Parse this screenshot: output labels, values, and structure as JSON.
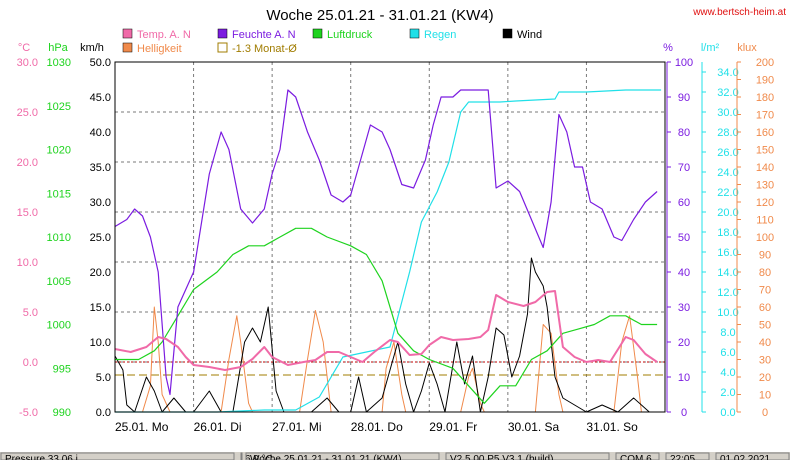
{
  "title": "Woche 25.01.21 - 31.01.21 (KW4)",
  "website": "www.bertsch-heim.at",
  "colors": {
    "temp": "#f06aa8",
    "humidity": "#7b1ce0",
    "pressure": "#1ed31e",
    "rain": "#20e0e8",
    "wind": "#000000",
    "brightness": "#f08a4b",
    "monthly_avg": "#a07c00",
    "grid": "#7a7a7a",
    "status_bar": "#d4d0c8"
  },
  "legend": [
    {
      "label": "Temp. A. N",
      "series": "temp"
    },
    {
      "label": "Feuchte A. N",
      "series": "humidity"
    },
    {
      "label": "Luftdruck",
      "series": "pressure"
    },
    {
      "label": "Regen",
      "series": "rain"
    },
    {
      "label": "Wind",
      "series": "wind"
    },
    {
      "label": "Helligkeit",
      "series": "brightness"
    },
    {
      "label": "-1.3 Monat-Ø",
      "series": "monthly_avg"
    }
  ],
  "status_bar": {
    "items": [
      "Pressure 33.06 i",
      "6.9 °C",
      "Woche 25.01.21 - 31.01.21 (KW4)",
      "V2.5.00 P5 V3.1 (build)",
      "COM 6",
      "22:05",
      "01.02.2021"
    ]
  },
  "chart_data": {
    "type": "line",
    "x_categories": [
      "25.01. Mo",
      "26.01. Di",
      "27.01. Mi",
      "28.01. Do",
      "29.01. Fr",
      "30.01. Sa",
      "31.01. So"
    ],
    "x_range_days": [
      0,
      7
    ],
    "axes": {
      "temp": {
        "unit": "°C",
        "range": [
          -5,
          30
        ],
        "ticks": [
          "-5.0",
          "0.0",
          "5.0",
          "10.0",
          "15.0",
          "20.0",
          "25.0",
          "30.0"
        ],
        "ticks_shown": [
          "-5.0",
          "0.0",
          "5.0",
          "10.0",
          "15.0",
          "20.0",
          "25.0",
          "30.0"
        ]
      },
      "pressure": {
        "unit": "hPa",
        "range": [
          990,
          1030
        ],
        "ticks_shown": [
          "990",
          "995",
          "1000",
          "1005",
          "1010",
          "1015",
          "1020",
          "1025",
          "1030"
        ]
      },
      "wind": {
        "unit": "km/h",
        "range": [
          0,
          50
        ],
        "ticks_shown": [
          "0.0",
          "5.0",
          "10.0",
          "15.0",
          "20.0",
          "25.0",
          "30.0",
          "35.0",
          "40.0",
          "45.0",
          "50.0"
        ]
      },
      "humidity": {
        "unit": "%",
        "range": [
          0,
          100
        ],
        "ticks_shown": [
          "0",
          "10",
          "20",
          "30",
          "40",
          "50",
          "60",
          "70",
          "80",
          "90",
          "100"
        ]
      },
      "rain": {
        "unit": "l/m²",
        "range": [
          0,
          35
        ],
        "ticks_shown": [
          "0.0",
          "2.0",
          "4.0",
          "6.0",
          "8.0",
          "10.0",
          "12.0",
          "14.0",
          "16.0",
          "18.0",
          "20.0",
          "22.0",
          "24.0",
          "26.0",
          "28.0",
          "30.0",
          "32.0",
          "34.0"
        ]
      },
      "brightness": {
        "unit": "klux",
        "range": [
          0,
          200
        ],
        "ticks_shown": [
          "0",
          "10",
          "20",
          "30",
          "40",
          "50",
          "60",
          "70",
          "80",
          "90",
          "100",
          "110",
          "120",
          "130",
          "140",
          "150",
          "160",
          "170",
          "180",
          "190",
          "200"
        ]
      }
    },
    "grid": true,
    "reference_lines": {
      "temp_zero": 0.0,
      "monthly_avg_temp": -1.3
    },
    "series": [
      {
        "name": "Feuchte A. N",
        "axis": "humidity",
        "points": [
          [
            0,
            53
          ],
          [
            0.15,
            55
          ],
          [
            0.25,
            58
          ],
          [
            0.35,
            56
          ],
          [
            0.45,
            50
          ],
          [
            0.55,
            40
          ],
          [
            0.65,
            10
          ],
          [
            0.7,
            5
          ],
          [
            0.8,
            30
          ],
          [
            1.0,
            40
          ],
          [
            1.2,
            68
          ],
          [
            1.35,
            80
          ],
          [
            1.45,
            75
          ],
          [
            1.6,
            58
          ],
          [
            1.75,
            54
          ],
          [
            1.9,
            58
          ],
          [
            2.0,
            68
          ],
          [
            2.1,
            75
          ],
          [
            2.2,
            92
          ],
          [
            2.3,
            90
          ],
          [
            2.45,
            80
          ],
          [
            2.6,
            72
          ],
          [
            2.75,
            62
          ],
          [
            2.9,
            60
          ],
          [
            3.0,
            62
          ],
          [
            3.1,
            70
          ],
          [
            3.25,
            82
          ],
          [
            3.4,
            80
          ],
          [
            3.5,
            75
          ],
          [
            3.65,
            65
          ],
          [
            3.8,
            64
          ],
          [
            3.95,
            72
          ],
          [
            4.05,
            82
          ],
          [
            4.15,
            90
          ],
          [
            4.3,
            90
          ],
          [
            4.4,
            92
          ],
          [
            4.5,
            92
          ],
          [
            4.6,
            92
          ],
          [
            4.75,
            92
          ],
          [
            4.85,
            64
          ],
          [
            5.0,
            66
          ],
          [
            5.15,
            63
          ],
          [
            5.3,
            55
          ],
          [
            5.45,
            47
          ],
          [
            5.55,
            60
          ],
          [
            5.65,
            85
          ],
          [
            5.75,
            80
          ],
          [
            5.85,
            70
          ],
          [
            5.95,
            70
          ],
          [
            6.05,
            60
          ],
          [
            6.2,
            58
          ],
          [
            6.35,
            50
          ],
          [
            6.45,
            49
          ],
          [
            6.6,
            55
          ],
          [
            6.75,
            60
          ],
          [
            6.9,
            63
          ]
        ]
      },
      {
        "name": "Temp. A. N",
        "axis": "temp",
        "points": [
          [
            0,
            1.3
          ],
          [
            0.2,
            1.0
          ],
          [
            0.4,
            1.5
          ],
          [
            0.55,
            2.5
          ],
          [
            0.65,
            2.3
          ],
          [
            0.8,
            1.5
          ],
          [
            0.9,
            0.5
          ],
          [
            1.0,
            -0.3
          ],
          [
            1.2,
            -0.5
          ],
          [
            1.4,
            -0.8
          ],
          [
            1.6,
            -0.5
          ],
          [
            1.75,
            0.3
          ],
          [
            1.9,
            1.5
          ],
          [
            2.0,
            0.5
          ],
          [
            2.2,
            -0.3
          ],
          [
            2.4,
            0.0
          ],
          [
            2.55,
            0.2
          ],
          [
            2.7,
            1.0
          ],
          [
            2.85,
            1.0
          ],
          [
            3.0,
            0.5
          ],
          [
            3.15,
            0.0
          ],
          [
            3.3,
            1.0
          ],
          [
            3.5,
            2.2
          ],
          [
            3.6,
            2.0
          ],
          [
            3.75,
            0.7
          ],
          [
            3.9,
            0.8
          ],
          [
            4.0,
            1.7
          ],
          [
            4.15,
            2.5
          ],
          [
            4.3,
            2.2
          ],
          [
            4.5,
            2.3
          ],
          [
            4.65,
            2.5
          ],
          [
            4.75,
            3.2
          ],
          [
            4.85,
            6.7
          ],
          [
            5.0,
            6.0
          ],
          [
            5.2,
            5.6
          ],
          [
            5.35,
            6.0
          ],
          [
            5.5,
            7.0
          ],
          [
            5.6,
            7.1
          ],
          [
            5.7,
            1.5
          ],
          [
            5.85,
            0.5
          ],
          [
            6.0,
            0.0
          ],
          [
            6.15,
            0.2
          ],
          [
            6.3,
            0.0
          ],
          [
            6.5,
            2.5
          ],
          [
            6.6,
            2.2
          ],
          [
            6.75,
            0.8
          ],
          [
            6.9,
            0.0
          ]
        ]
      },
      {
        "name": "Luftdruck",
        "axis": "pressure",
        "points": [
          [
            0,
            996
          ],
          [
            0.3,
            996
          ],
          [
            0.5,
            997
          ],
          [
            0.6,
            998
          ],
          [
            0.8,
            1001
          ],
          [
            1.0,
            1004
          ],
          [
            1.3,
            1006
          ],
          [
            1.5,
            1008
          ],
          [
            1.7,
            1009
          ],
          [
            1.9,
            1009
          ],
          [
            2.1,
            1010
          ],
          [
            2.3,
            1011
          ],
          [
            2.5,
            1011
          ],
          [
            2.7,
            1010
          ],
          [
            3.0,
            1009
          ],
          [
            3.2,
            1008
          ],
          [
            3.4,
            1005
          ],
          [
            3.6,
            999
          ],
          [
            3.8,
            997
          ],
          [
            4.0,
            996
          ],
          [
            4.3,
            995
          ],
          [
            4.5,
            993
          ],
          [
            4.7,
            991
          ],
          [
            4.9,
            993
          ],
          [
            5.1,
            993
          ],
          [
            5.3,
            996
          ],
          [
            5.5,
            997
          ],
          [
            5.7,
            999
          ],
          [
            5.9,
            999.5
          ],
          [
            6.1,
            1000
          ],
          [
            6.3,
            1001
          ],
          [
            6.5,
            1001
          ],
          [
            6.7,
            1000
          ],
          [
            6.9,
            1000
          ]
        ]
      },
      {
        "name": "Regen",
        "axis": "rain",
        "points": [
          [
            0,
            0
          ],
          [
            1.3,
            0
          ],
          [
            1.9,
            0.2
          ],
          [
            2.3,
            0.2
          ],
          [
            2.6,
            1.5
          ],
          [
            2.9,
            5.5
          ],
          [
            3.2,
            6.0
          ],
          [
            3.5,
            6.5
          ],
          [
            3.75,
            14
          ],
          [
            3.9,
            19
          ],
          [
            4.1,
            22
          ],
          [
            4.25,
            25
          ],
          [
            4.4,
            30
          ],
          [
            4.5,
            31
          ],
          [
            4.7,
            31
          ],
          [
            4.9,
            31
          ],
          [
            5.1,
            31.1
          ],
          [
            5.35,
            31.2
          ],
          [
            5.6,
            31.3
          ],
          [
            5.65,
            32
          ],
          [
            6.0,
            32
          ],
          [
            6.5,
            32.2
          ],
          [
            6.95,
            32.2
          ]
        ]
      },
      {
        "name": "Wind",
        "axis": "wind",
        "points": [
          [
            0,
            8
          ],
          [
            0.1,
            6
          ],
          [
            0.15,
            1
          ],
          [
            0.25,
            0
          ],
          [
            0.4,
            5
          ],
          [
            0.5,
            3
          ],
          [
            0.6,
            0
          ],
          [
            0.75,
            2
          ],
          [
            0.9,
            0
          ],
          [
            1.0,
            0
          ],
          [
            1.2,
            3
          ],
          [
            1.35,
            0
          ],
          [
            1.5,
            0
          ],
          [
            1.65,
            10
          ],
          [
            1.75,
            12
          ],
          [
            1.85,
            10
          ],
          [
            1.95,
            15
          ],
          [
            2.05,
            3
          ],
          [
            2.15,
            0
          ],
          [
            2.3,
            0
          ],
          [
            2.5,
            0
          ],
          [
            2.7,
            2
          ],
          [
            2.85,
            0
          ],
          [
            3.0,
            0
          ],
          [
            3.1,
            5
          ],
          [
            3.2,
            0
          ],
          [
            3.4,
            2
          ],
          [
            3.5,
            6
          ],
          [
            3.6,
            10
          ],
          [
            3.7,
            4
          ],
          [
            3.8,
            0
          ],
          [
            3.9,
            3
          ],
          [
            4.0,
            7
          ],
          [
            4.1,
            4
          ],
          [
            4.2,
            0
          ],
          [
            4.35,
            10
          ],
          [
            4.45,
            4
          ],
          [
            4.55,
            8
          ],
          [
            4.65,
            0
          ],
          [
            4.75,
            5
          ],
          [
            4.85,
            12
          ],
          [
            4.95,
            11
          ],
          [
            5.05,
            5
          ],
          [
            5.15,
            8
          ],
          [
            5.25,
            14
          ],
          [
            5.3,
            22
          ],
          [
            5.35,
            20
          ],
          [
            5.45,
            18
          ],
          [
            5.5,
            15
          ],
          [
            5.6,
            5
          ],
          [
            5.7,
            2
          ],
          [
            5.85,
            1
          ],
          [
            6.0,
            0
          ],
          [
            6.2,
            1
          ],
          [
            6.4,
            0
          ],
          [
            6.6,
            2
          ],
          [
            6.8,
            0
          ],
          [
            6.95,
            0
          ]
        ]
      },
      {
        "name": "Helligkeit",
        "axis": "brightness",
        "points": [
          [
            0,
            0
          ],
          [
            0.35,
            0
          ],
          [
            0.45,
            15
          ],
          [
            0.5,
            60
          ],
          [
            0.55,
            40
          ],
          [
            0.6,
            10
          ],
          [
            0.7,
            0
          ],
          [
            1.35,
            0
          ],
          [
            1.45,
            30
          ],
          [
            1.55,
            55
          ],
          [
            1.6,
            40
          ],
          [
            1.7,
            5
          ],
          [
            1.75,
            0
          ],
          [
            2.35,
            0
          ],
          [
            2.45,
            30
          ],
          [
            2.55,
            58
          ],
          [
            2.65,
            40
          ],
          [
            2.75,
            0
          ],
          [
            3.4,
            0
          ],
          [
            3.45,
            25
          ],
          [
            3.55,
            40
          ],
          [
            3.65,
            10
          ],
          [
            3.7,
            0
          ],
          [
            4.4,
            0
          ],
          [
            4.5,
            20
          ],
          [
            4.55,
            25
          ],
          [
            4.65,
            5
          ],
          [
            4.7,
            0
          ],
          [
            5.35,
            0
          ],
          [
            5.45,
            50
          ],
          [
            5.55,
            45
          ],
          [
            5.65,
            10
          ],
          [
            5.7,
            0
          ],
          [
            6.35,
            0
          ],
          [
            6.45,
            40
          ],
          [
            6.55,
            55
          ],
          [
            6.65,
            20
          ],
          [
            6.7,
            0
          ],
          [
            6.95,
            0
          ]
        ]
      }
    ]
  }
}
